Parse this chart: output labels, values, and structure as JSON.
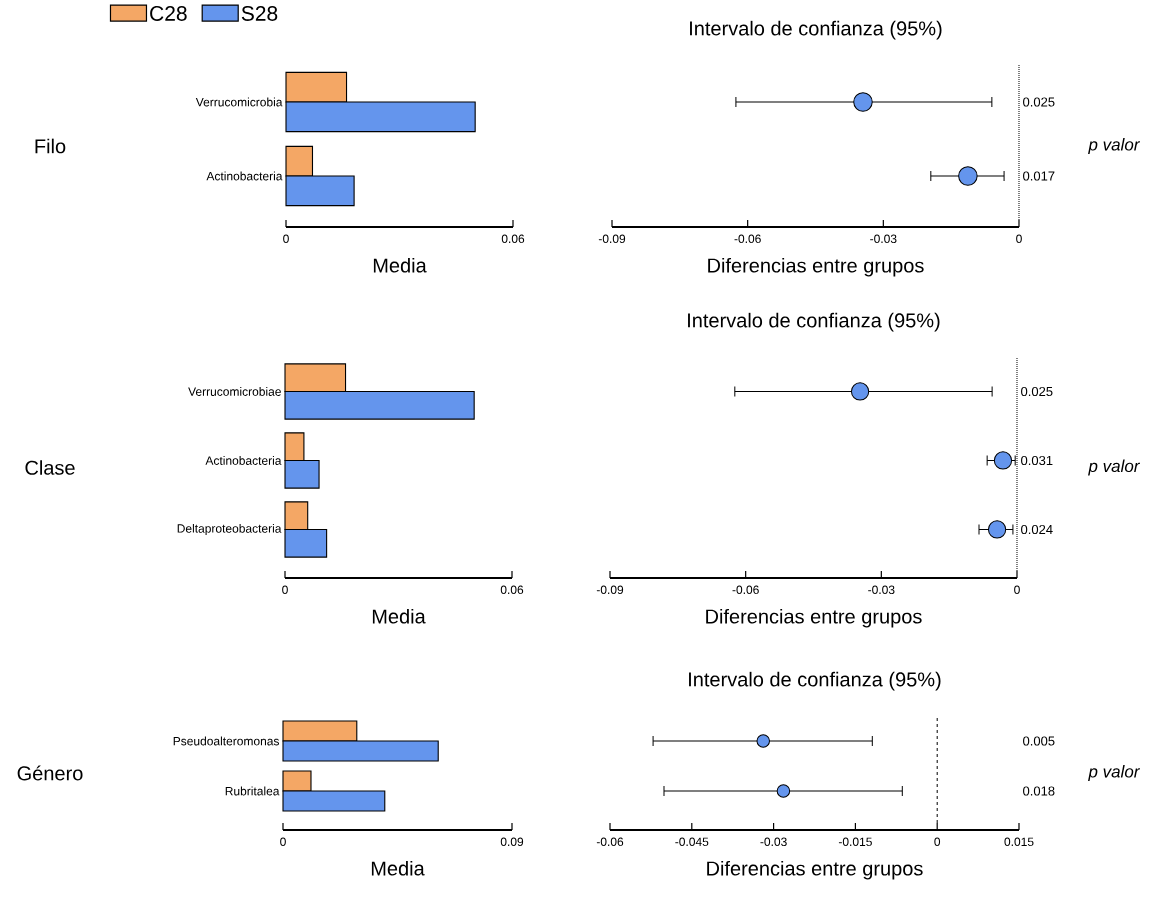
{
  "chart_data": [
    {
      "type": "bar",
      "orientation": "horizontal",
      "ylabel": "Filo",
      "xlabel": "Media",
      "categories": [
        "Verrucomicrobia",
        "Actinobacteria"
      ],
      "xlim": [
        0,
        0.06
      ],
      "xticks": [
        0,
        0.06
      ],
      "legend": "top left",
      "series": [
        {
          "name": "C28",
          "color": "#f4a765",
          "values": [
            0.016,
            0.007
          ]
        },
        {
          "name": "S28",
          "color": "#6495ed",
          "values": [
            0.05,
            0.018
          ]
        }
      ]
    },
    {
      "type": "scatter",
      "orientation": "horizontal",
      "marker": "circle",
      "title": "Intervalo de confianza (95%)",
      "xlabel": "Diferencias entre grupos",
      "y2label": "p valor",
      "categories": [
        null,
        null
      ],
      "xlim": [
        -0.09,
        0
      ],
      "xticks": [
        -0.09,
        -0.06,
        -0.03,
        0
      ],
      "ref_lines": [
        {
          "axis": "x",
          "value": 0,
          "line_style": "dotted"
        }
      ],
      "annotations": [
        "0.025",
        "0.017"
      ],
      "series": [
        {
          "color": "#6495ed",
          "values": [
            -0.0345,
            -0.0113
          ],
          "errors": [
            [
              -0.0626,
              -0.006
            ],
            [
              -0.0195,
              -0.0033
            ]
          ]
        }
      ]
    },
    {
      "type": "bar",
      "orientation": "horizontal",
      "ylabel": "Clase",
      "xlabel": "Media",
      "categories": [
        "Verrucomicrobiae",
        "Actinobacteria",
        "Deltaproteobacteria"
      ],
      "xlim": [
        0,
        0.06
      ],
      "xticks": [
        0,
        0.06
      ],
      "series": [
        {
          "color": "#f4a765",
          "values": [
            0.016,
            0.005,
            0.006
          ]
        },
        {
          "color": "#6495ed",
          "values": [
            0.05,
            0.009,
            0.011
          ]
        }
      ]
    },
    {
      "type": "scatter",
      "orientation": "horizontal",
      "marker": "circle",
      "title": "Intervalo de confianza (95%)",
      "xlabel": "Diferencias entre grupos",
      "y2label": "p valor",
      "categories": [
        null,
        null,
        null
      ],
      "xlim": [
        -0.09,
        0
      ],
      "xticks": [
        -0.09,
        -0.06,
        -0.03,
        0
      ],
      "ref_lines": [
        {
          "axis": "x",
          "value": 0,
          "line_style": "dotted"
        }
      ],
      "annotations": [
        "0.025",
        "0.031",
        "0.024"
      ],
      "series": [
        {
          "color": "#6495ed",
          "values": [
            -0.0347,
            -0.0031,
            -0.0044
          ],
          "errors": [
            [
              -0.0624,
              -0.0055
            ],
            [
              -0.0066,
              -0.0004
            ],
            [
              -0.0084,
              -0.0009
            ]
          ]
        }
      ]
    },
    {
      "type": "bar",
      "orientation": "horizontal",
      "ylabel": "Género",
      "xlabel": "Media",
      "categories": [
        "Pseudoalteromonas",
        "Rubritalea"
      ],
      "xlim": [
        0,
        0.09
      ],
      "xticks": [
        0,
        0.09
      ],
      "series": [
        {
          "color": "#f4a765",
          "values": [
            0.029,
            0.011
          ]
        },
        {
          "color": "#6495ed",
          "values": [
            0.061,
            0.04
          ]
        }
      ]
    },
    {
      "type": "scatter",
      "orientation": "horizontal",
      "marker": "circle",
      "title": "Intervalo de confianza (95%)",
      "xlabel": "Diferencias entre grupos",
      "y2label": "p valor",
      "categories": [
        null,
        null
      ],
      "xlim": [
        -0.06,
        0.015
      ],
      "xticks": [
        -0.06,
        -0.045,
        -0.03,
        -0.015,
        0,
        0.015
      ],
      "ref_lines": [
        {
          "axis": "x",
          "value": 0,
          "line_style": "dashed"
        }
      ],
      "annotations": [
        "0.005",
        "0.018"
      ],
      "series": [
        {
          "color": "#6495ed",
          "values": [
            -0.0319,
            -0.0282
          ],
          "errors": [
            [
              -0.0521,
              -0.0119
            ],
            [
              -0.0501,
              -0.0064
            ]
          ]
        }
      ]
    }
  ]
}
